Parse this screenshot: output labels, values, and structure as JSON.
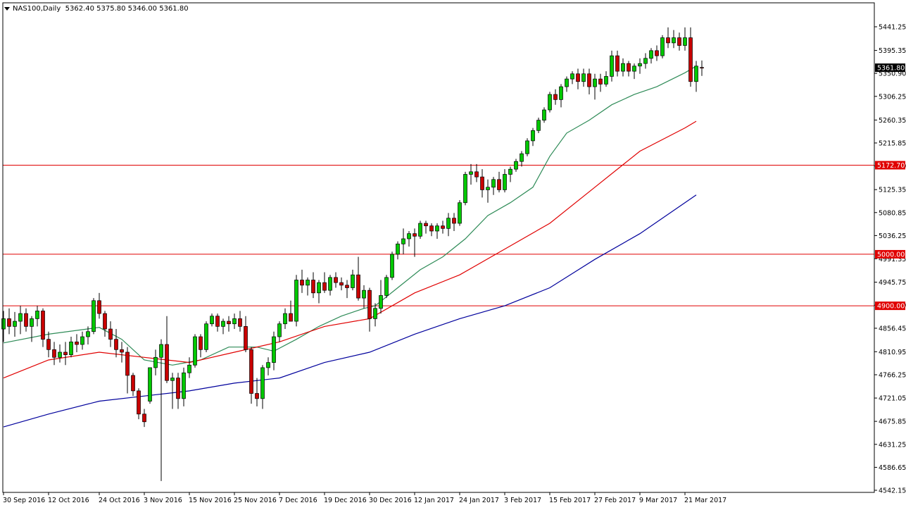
{
  "header": {
    "symbol": "NAS100,Daily",
    "ohlc": "5362.40 5375.80 5346.00 5361.80"
  },
  "colors": {
    "background": "#ffffff",
    "axis": "#000000",
    "bull": "#00c800",
    "bear": "#c80000",
    "wick": "#000000",
    "ma_short": "#2e8b57",
    "ma_mid": "#e00000",
    "ma_long": "#00009c",
    "hline": "#e00000",
    "price_tag_bg": "#000000",
    "price_tag_fg": "#ffffff"
  },
  "chart_data": {
    "type": "candlestick",
    "symbol": "NAS100",
    "timeframe": "Daily",
    "ylim": [
      4535,
      5470
    ],
    "y_ticks": [
      5441.25,
      5395.35,
      5350.9,
      5306.25,
      5260.35,
      5215.85,
      5171.2,
      5125.35,
      5080.85,
      5036.25,
      4991.35,
      4945.75,
      4901.2,
      4856.45,
      4810.95,
      4766.25,
      4721.05,
      4675.85,
      4631.25,
      4586.65,
      4542.15
    ],
    "y_tick_labels": [
      "5441.25",
      "5395.35",
      "5350.90",
      "5306.25",
      "5260.35",
      "5215.85",
      "5171.20",
      "5125.35",
      "5080.85",
      "5036.25",
      "4991.35",
      "4945.75",
      "4901.20",
      "4856.45",
      "4810.95",
      "4766.25",
      "4721.05",
      "4675.85",
      "4631.25",
      "4586.65",
      "4542.15"
    ],
    "x_labels": [
      {
        "index": 0,
        "text": "30 Sep 2016"
      },
      {
        "index": 8,
        "text": "12 Oct 2016"
      },
      {
        "index": 17,
        "text": "24 Oct 2016"
      },
      {
        "index": 25,
        "text": "3 Nov 2016"
      },
      {
        "index": 33,
        "text": "15 Nov 2016"
      },
      {
        "index": 41,
        "text": "25 Nov 2016"
      },
      {
        "index": 49,
        "text": "7 Dec 2016"
      },
      {
        "index": 57,
        "text": "19 Dec 2016"
      },
      {
        "index": 65,
        "text": "30 Dec 2016"
      },
      {
        "index": 73,
        "text": "12 Jan 2017"
      },
      {
        "index": 81,
        "text": "24 Jan 2017"
      },
      {
        "index": 89,
        "text": "3 Feb 2017"
      },
      {
        "index": 97,
        "text": "15 Feb 2017"
      },
      {
        "index": 105,
        "text": "27 Feb 2017"
      },
      {
        "index": 113,
        "text": "9 Mar 2017"
      },
      {
        "index": 121,
        "text": "21 Mar 2017"
      }
    ],
    "candles": [
      {
        "o": 4855,
        "h": 4890,
        "l": 4830,
        "c": 4875
      },
      {
        "o": 4875,
        "h": 4895,
        "l": 4845,
        "c": 4860
      },
      {
        "o": 4860,
        "h": 4888,
        "l": 4840,
        "c": 4870
      },
      {
        "o": 4870,
        "h": 4900,
        "l": 4845,
        "c": 4885
      },
      {
        "o": 4885,
        "h": 4895,
        "l": 4850,
        "c": 4860
      },
      {
        "o": 4860,
        "h": 4880,
        "l": 4830,
        "c": 4875
      },
      {
        "o": 4875,
        "h": 4900,
        "l": 4860,
        "c": 4890
      },
      {
        "o": 4890,
        "h": 4895,
        "l": 4820,
        "c": 4835
      },
      {
        "o": 4835,
        "h": 4850,
        "l": 4800,
        "c": 4815
      },
      {
        "o": 4815,
        "h": 4830,
        "l": 4785,
        "c": 4800
      },
      {
        "o": 4800,
        "h": 4825,
        "l": 4790,
        "c": 4810
      },
      {
        "o": 4810,
        "h": 4830,
        "l": 4785,
        "c": 4805
      },
      {
        "o": 4805,
        "h": 4840,
        "l": 4800,
        "c": 4830
      },
      {
        "o": 4830,
        "h": 4845,
        "l": 4810,
        "c": 4825
      },
      {
        "o": 4825,
        "h": 4850,
        "l": 4815,
        "c": 4840
      },
      {
        "o": 4840,
        "h": 4860,
        "l": 4825,
        "c": 4850
      },
      {
        "o": 4850,
        "h": 4915,
        "l": 4845,
        "c": 4910
      },
      {
        "o": 4910,
        "h": 4925,
        "l": 4875,
        "c": 4885
      },
      {
        "o": 4885,
        "h": 4890,
        "l": 4840,
        "c": 4855
      },
      {
        "o": 4855,
        "h": 4870,
        "l": 4820,
        "c": 4835
      },
      {
        "o": 4835,
        "h": 4855,
        "l": 4800,
        "c": 4815
      },
      {
        "o": 4815,
        "h": 4830,
        "l": 4790,
        "c": 4810
      },
      {
        "o": 4810,
        "h": 4820,
        "l": 4730,
        "c": 4765
      },
      {
        "o": 4765,
        "h": 4770,
        "l": 4725,
        "c": 4735
      },
      {
        "o": 4735,
        "h": 4740,
        "l": 4680,
        "c": 4690
      },
      {
        "o": 4690,
        "h": 4700,
        "l": 4665,
        "c": 4675
      },
      {
        "o": 4715,
        "h": 4780,
        "l": 4710,
        "c": 4780
      },
      {
        "o": 4780,
        "h": 4815,
        "l": 4765,
        "c": 4800
      },
      {
        "o": 4800,
        "h": 4835,
        "l": 4560,
        "c": 4825
      },
      {
        "o": 4825,
        "h": 4880,
        "l": 4750,
        "c": 4755
      },
      {
        "o": 4755,
        "h": 4770,
        "l": 4700,
        "c": 4760
      },
      {
        "o": 4760,
        "h": 4770,
        "l": 4700,
        "c": 4720
      },
      {
        "o": 4720,
        "h": 4780,
        "l": 4705,
        "c": 4770
      },
      {
        "o": 4770,
        "h": 4800,
        "l": 4760,
        "c": 4785
      },
      {
        "o": 4785,
        "h": 4845,
        "l": 4780,
        "c": 4840
      },
      {
        "o": 4840,
        "h": 4845,
        "l": 4800,
        "c": 4815
      },
      {
        "o": 4815,
        "h": 4870,
        "l": 4810,
        "c": 4865
      },
      {
        "o": 4865,
        "h": 4885,
        "l": 4860,
        "c": 4880
      },
      {
        "o": 4880,
        "h": 4885,
        "l": 4850,
        "c": 4860
      },
      {
        "o": 4860,
        "h": 4875,
        "l": 4845,
        "c": 4870
      },
      {
        "o": 4870,
        "h": 4880,
        "l": 4850,
        "c": 4865
      },
      {
        "o": 4865,
        "h": 4885,
        "l": 4855,
        "c": 4875
      },
      {
        "o": 4875,
        "h": 4890,
        "l": 4850,
        "c": 4860
      },
      {
        "o": 4860,
        "h": 4880,
        "l": 4810,
        "c": 4815
      },
      {
        "o": 4815,
        "h": 4820,
        "l": 4710,
        "c": 4730
      },
      {
        "o": 4730,
        "h": 4760,
        "l": 4705,
        "c": 4720
      },
      {
        "o": 4720,
        "h": 4785,
        "l": 4700,
        "c": 4780
      },
      {
        "o": 4780,
        "h": 4800,
        "l": 4765,
        "c": 4790
      },
      {
        "o": 4790,
        "h": 4850,
        "l": 4775,
        "c": 4840
      },
      {
        "o": 4840,
        "h": 4870,
        "l": 4830,
        "c": 4865
      },
      {
        "o": 4865,
        "h": 4895,
        "l": 4855,
        "c": 4885
      },
      {
        "o": 4885,
        "h": 4910,
        "l": 4870,
        "c": 4870
      },
      {
        "o": 4870,
        "h": 4960,
        "l": 4860,
        "c": 4950
      },
      {
        "o": 4950,
        "h": 4970,
        "l": 4925,
        "c": 4940
      },
      {
        "o": 4940,
        "h": 4955,
        "l": 4920,
        "c": 4950
      },
      {
        "o": 4950,
        "h": 4965,
        "l": 4915,
        "c": 4925
      },
      {
        "o": 4925,
        "h": 4950,
        "l": 4905,
        "c": 4945
      },
      {
        "o": 4945,
        "h": 4965,
        "l": 4925,
        "c": 4930
      },
      {
        "o": 4930,
        "h": 4960,
        "l": 4920,
        "c": 4955
      },
      {
        "o": 4955,
        "h": 4965,
        "l": 4935,
        "c": 4945
      },
      {
        "o": 4945,
        "h": 4955,
        "l": 4930,
        "c": 4940
      },
      {
        "o": 4940,
        "h": 4950,
        "l": 4915,
        "c": 4935
      },
      {
        "o": 4935,
        "h": 4970,
        "l": 4930,
        "c": 4960
      },
      {
        "o": 4960,
        "h": 4995,
        "l": 4910,
        "c": 4915
      },
      {
        "o": 4915,
        "h": 4940,
        "l": 4895,
        "c": 4930
      },
      {
        "o": 4930,
        "h": 4935,
        "l": 4850,
        "c": 4875
      },
      {
        "o": 4875,
        "h": 4905,
        "l": 4860,
        "c": 4895
      },
      {
        "o": 4895,
        "h": 4950,
        "l": 4885,
        "c": 4920
      },
      {
        "o": 4920,
        "h": 4960,
        "l": 4915,
        "c": 4955
      },
      {
        "o": 4955,
        "h": 5005,
        "l": 4950,
        "c": 5000
      },
      {
        "o": 5000,
        "h": 5025,
        "l": 4990,
        "c": 5020
      },
      {
        "o": 5020,
        "h": 5050,
        "l": 5000,
        "c": 5030
      },
      {
        "o": 5030,
        "h": 5045,
        "l": 5015,
        "c": 5040
      },
      {
        "o": 5040,
        "h": 5050,
        "l": 4995,
        "c": 5035
      },
      {
        "o": 5035,
        "h": 5065,
        "l": 5030,
        "c": 5060
      },
      {
        "o": 5060,
        "h": 5065,
        "l": 5040,
        "c": 5055
      },
      {
        "o": 5055,
        "h": 5060,
        "l": 5035,
        "c": 5045
      },
      {
        "o": 5045,
        "h": 5060,
        "l": 5030,
        "c": 5055
      },
      {
        "o": 5055,
        "h": 5065,
        "l": 5040,
        "c": 5050
      },
      {
        "o": 5050,
        "h": 5080,
        "l": 5035,
        "c": 5070
      },
      {
        "o": 5070,
        "h": 5080,
        "l": 5045,
        "c": 5060
      },
      {
        "o": 5060,
        "h": 5105,
        "l": 5055,
        "c": 5100
      },
      {
        "o": 5100,
        "h": 5160,
        "l": 5095,
        "c": 5155
      },
      {
        "o": 5155,
        "h": 5175,
        "l": 5135,
        "c": 5160
      },
      {
        "o": 5160,
        "h": 5175,
        "l": 5140,
        "c": 5150
      },
      {
        "o": 5150,
        "h": 5165,
        "l": 5110,
        "c": 5125
      },
      {
        "o": 5125,
        "h": 5145,
        "l": 5100,
        "c": 5130
      },
      {
        "o": 5130,
        "h": 5150,
        "l": 5115,
        "c": 5145
      },
      {
        "o": 5145,
        "h": 5160,
        "l": 5120,
        "c": 5125
      },
      {
        "o": 5125,
        "h": 5165,
        "l": 5120,
        "c": 5155
      },
      {
        "o": 5155,
        "h": 5170,
        "l": 5140,
        "c": 5165
      },
      {
        "o": 5165,
        "h": 5185,
        "l": 5160,
        "c": 5180
      },
      {
        "o": 5180,
        "h": 5200,
        "l": 5170,
        "c": 5195
      },
      {
        "o": 5195,
        "h": 5225,
        "l": 5190,
        "c": 5220
      },
      {
        "o": 5220,
        "h": 5245,
        "l": 5210,
        "c": 5240
      },
      {
        "o": 5240,
        "h": 5265,
        "l": 5235,
        "c": 5260
      },
      {
        "o": 5260,
        "h": 5285,
        "l": 5255,
        "c": 5280
      },
      {
        "o": 5280,
        "h": 5315,
        "l": 5275,
        "c": 5310
      },
      {
        "o": 5310,
        "h": 5320,
        "l": 5290,
        "c": 5300
      },
      {
        "o": 5300,
        "h": 5330,
        "l": 5285,
        "c": 5325
      },
      {
        "o": 5325,
        "h": 5345,
        "l": 5315,
        "c": 5340
      },
      {
        "o": 5340,
        "h": 5355,
        "l": 5330,
        "c": 5350
      },
      {
        "o": 5350,
        "h": 5360,
        "l": 5320,
        "c": 5335
      },
      {
        "o": 5335,
        "h": 5360,
        "l": 5325,
        "c": 5350
      },
      {
        "o": 5350,
        "h": 5360,
        "l": 5310,
        "c": 5325
      },
      {
        "o": 5325,
        "h": 5350,
        "l": 5300,
        "c": 5340
      },
      {
        "o": 5340,
        "h": 5350,
        "l": 5315,
        "c": 5330
      },
      {
        "o": 5330,
        "h": 5355,
        "l": 5325,
        "c": 5345
      },
      {
        "o": 5345,
        "h": 5395,
        "l": 5335,
        "c": 5385
      },
      {
        "o": 5385,
        "h": 5395,
        "l": 5345,
        "c": 5355
      },
      {
        "o": 5355,
        "h": 5380,
        "l": 5345,
        "c": 5370
      },
      {
        "o": 5370,
        "h": 5375,
        "l": 5345,
        "c": 5355
      },
      {
        "o": 5355,
        "h": 5370,
        "l": 5340,
        "c": 5365
      },
      {
        "o": 5365,
        "h": 5380,
        "l": 5350,
        "c": 5370
      },
      {
        "o": 5370,
        "h": 5390,
        "l": 5360,
        "c": 5380
      },
      {
        "o": 5380,
        "h": 5400,
        "l": 5370,
        "c": 5395
      },
      {
        "o": 5395,
        "h": 5405,
        "l": 5375,
        "c": 5385
      },
      {
        "o": 5385,
        "h": 5425,
        "l": 5380,
        "c": 5420
      },
      {
        "o": 5420,
        "h": 5440,
        "l": 5400,
        "c": 5410
      },
      {
        "o": 5410,
        "h": 5435,
        "l": 5400,
        "c": 5420
      },
      {
        "o": 5420,
        "h": 5430,
        "l": 5395,
        "c": 5405
      },
      {
        "o": 5405,
        "h": 5440,
        "l": 5395,
        "c": 5420
      },
      {
        "o": 5420,
        "h": 5440,
        "l": 5325,
        "c": 5335
      },
      {
        "o": 5335,
        "h": 5375,
        "l": 5315,
        "c": 5365
      },
      {
        "o": 5362.4,
        "h": 5375.8,
        "l": 5346.0,
        "c": 5361.8
      }
    ],
    "moving_averages": [
      {
        "color": "#2e8b57",
        "points": [
          [
            0,
            4828
          ],
          [
            8,
            4845
          ],
          [
            17,
            4858
          ],
          [
            21,
            4835
          ],
          [
            25,
            4795
          ],
          [
            30,
            4785
          ],
          [
            35,
            4795
          ],
          [
            40,
            4820
          ],
          [
            45,
            4820
          ],
          [
            48,
            4812
          ],
          [
            52,
            4835
          ],
          [
            56,
            4860
          ],
          [
            60,
            4880
          ],
          [
            64,
            4895
          ],
          [
            66,
            4900
          ],
          [
            70,
            4935
          ],
          [
            74,
            4970
          ],
          [
            78,
            4995
          ],
          [
            82,
            5030
          ],
          [
            86,
            5075
          ],
          [
            90,
            5100
          ],
          [
            94,
            5130
          ],
          [
            97,
            5190
          ],
          [
            100,
            5235
          ],
          [
            104,
            5260
          ],
          [
            108,
            5290
          ],
          [
            112,
            5310
          ],
          [
            116,
            5325
          ],
          [
            121,
            5352
          ],
          [
            123,
            5365
          ]
        ]
      },
      {
        "color": "#e00000",
        "points": [
          [
            0,
            4760
          ],
          [
            8,
            4795
          ],
          [
            17,
            4810
          ],
          [
            25,
            4800
          ],
          [
            33,
            4790
          ],
          [
            41,
            4810
          ],
          [
            49,
            4830
          ],
          [
            57,
            4860
          ],
          [
            65,
            4875
          ],
          [
            73,
            4925
          ],
          [
            81,
            4960
          ],
          [
            89,
            5010
          ],
          [
            97,
            5060
          ],
          [
            105,
            5130
          ],
          [
            113,
            5200
          ],
          [
            121,
            5245
          ],
          [
            123,
            5258
          ]
        ]
      },
      {
        "color": "#00009c",
        "points": [
          [
            0,
            4665
          ],
          [
            8,
            4690
          ],
          [
            17,
            4715
          ],
          [
            25,
            4725
          ],
          [
            33,
            4735
          ],
          [
            41,
            4750
          ],
          [
            49,
            4760
          ],
          [
            57,
            4790
          ],
          [
            65,
            4810
          ],
          [
            73,
            4845
          ],
          [
            81,
            4875
          ],
          [
            89,
            4900
          ],
          [
            97,
            4935
          ],
          [
            105,
            4990
          ],
          [
            113,
            5040
          ],
          [
            121,
            5100
          ],
          [
            123,
            5115
          ]
        ]
      }
    ],
    "horizontal_lines": [
      5172.7,
      5000.0,
      4900.0
    ],
    "horizontal_line_labels": [
      "5172.70",
      "5000.00",
      "4900.00"
    ],
    "current_price_label": "5361.80",
    "current_price": 5361.8
  }
}
